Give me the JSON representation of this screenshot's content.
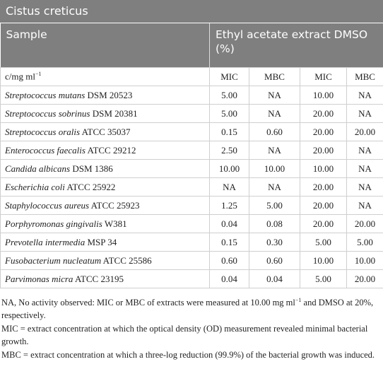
{
  "title": "Cistus creticus",
  "table": {
    "header": {
      "sample": "Sample",
      "extract": "Ethyl acetate extract DMSO (%)"
    },
    "subheader": {
      "unit": "c/mg ml",
      "unit_sup": "−1",
      "cols": [
        "MIC",
        "MBC",
        "MIC",
        "MBC"
      ]
    },
    "rows": [
      {
        "species": "Streptococcus mutans",
        "strain": "DSM 20523",
        "cells": [
          "5.00",
          "NA",
          "10.00",
          "NA"
        ]
      },
      {
        "species": "Streptococcus sobrinus",
        "strain": "DSM 20381",
        "cells": [
          "5.00",
          "NA",
          "20.00",
          "NA"
        ]
      },
      {
        "species": "Streptococcus oralis",
        "strain": "ATCC 35037",
        "cells": [
          "0.15",
          "0.60",
          "20.00",
          "20.00"
        ]
      },
      {
        "species": "Enterococcus faecalis",
        "strain": "ATCC 29212",
        "cells": [
          "2.50",
          "NA",
          "20.00",
          "NA"
        ]
      },
      {
        "species": "Candida albicans",
        "strain": "DSM 1386",
        "cells": [
          "10.00",
          "10.00",
          "10.00",
          "NA"
        ]
      },
      {
        "species": "Escherichia coli",
        "strain": "ATCC 25922",
        "cells": [
          "NA",
          "NA",
          "20.00",
          "NA"
        ]
      },
      {
        "species": "Staphylococcus aureus",
        "strain": "ATCC 25923",
        "cells": [
          "1.25",
          "5.00",
          "20.00",
          "NA"
        ]
      },
      {
        "species": "Porphyromonas gingivalis",
        "strain": "W381",
        "cells": [
          "0.04",
          "0.08",
          "20.00",
          "20.00"
        ]
      },
      {
        "species": "Prevotella intermedia",
        "strain": "MSP 34",
        "cells": [
          "0.15",
          "0.30",
          "5.00",
          "5.00"
        ]
      },
      {
        "species": "Fusobacterium nucleatum",
        "strain": "ATCC 25586",
        "cells": [
          "0.60",
          "0.60",
          "10.00",
          "10.00"
        ]
      },
      {
        "species": "Parvimonas micra",
        "strain": "ATCC 23195",
        "cells": [
          "0.04",
          "0.04",
          "5.00",
          "20.00"
        ]
      }
    ]
  },
  "footnotes": [
    {
      "text": "NA, No activity observed: MIC or MBC of extracts were measured at 10.00 mg ml",
      "sup": "−1",
      "tail": " and DMSO at 20%, respectively."
    },
    {
      "text": "MIC = extract concentration at which the optical density (OD) measurement revealed minimal bacterial growth."
    },
    {
      "text": "MBC = extract concentration at which a three-log reduction (99.9%) of the bacterial growth was induced."
    }
  ]
}
